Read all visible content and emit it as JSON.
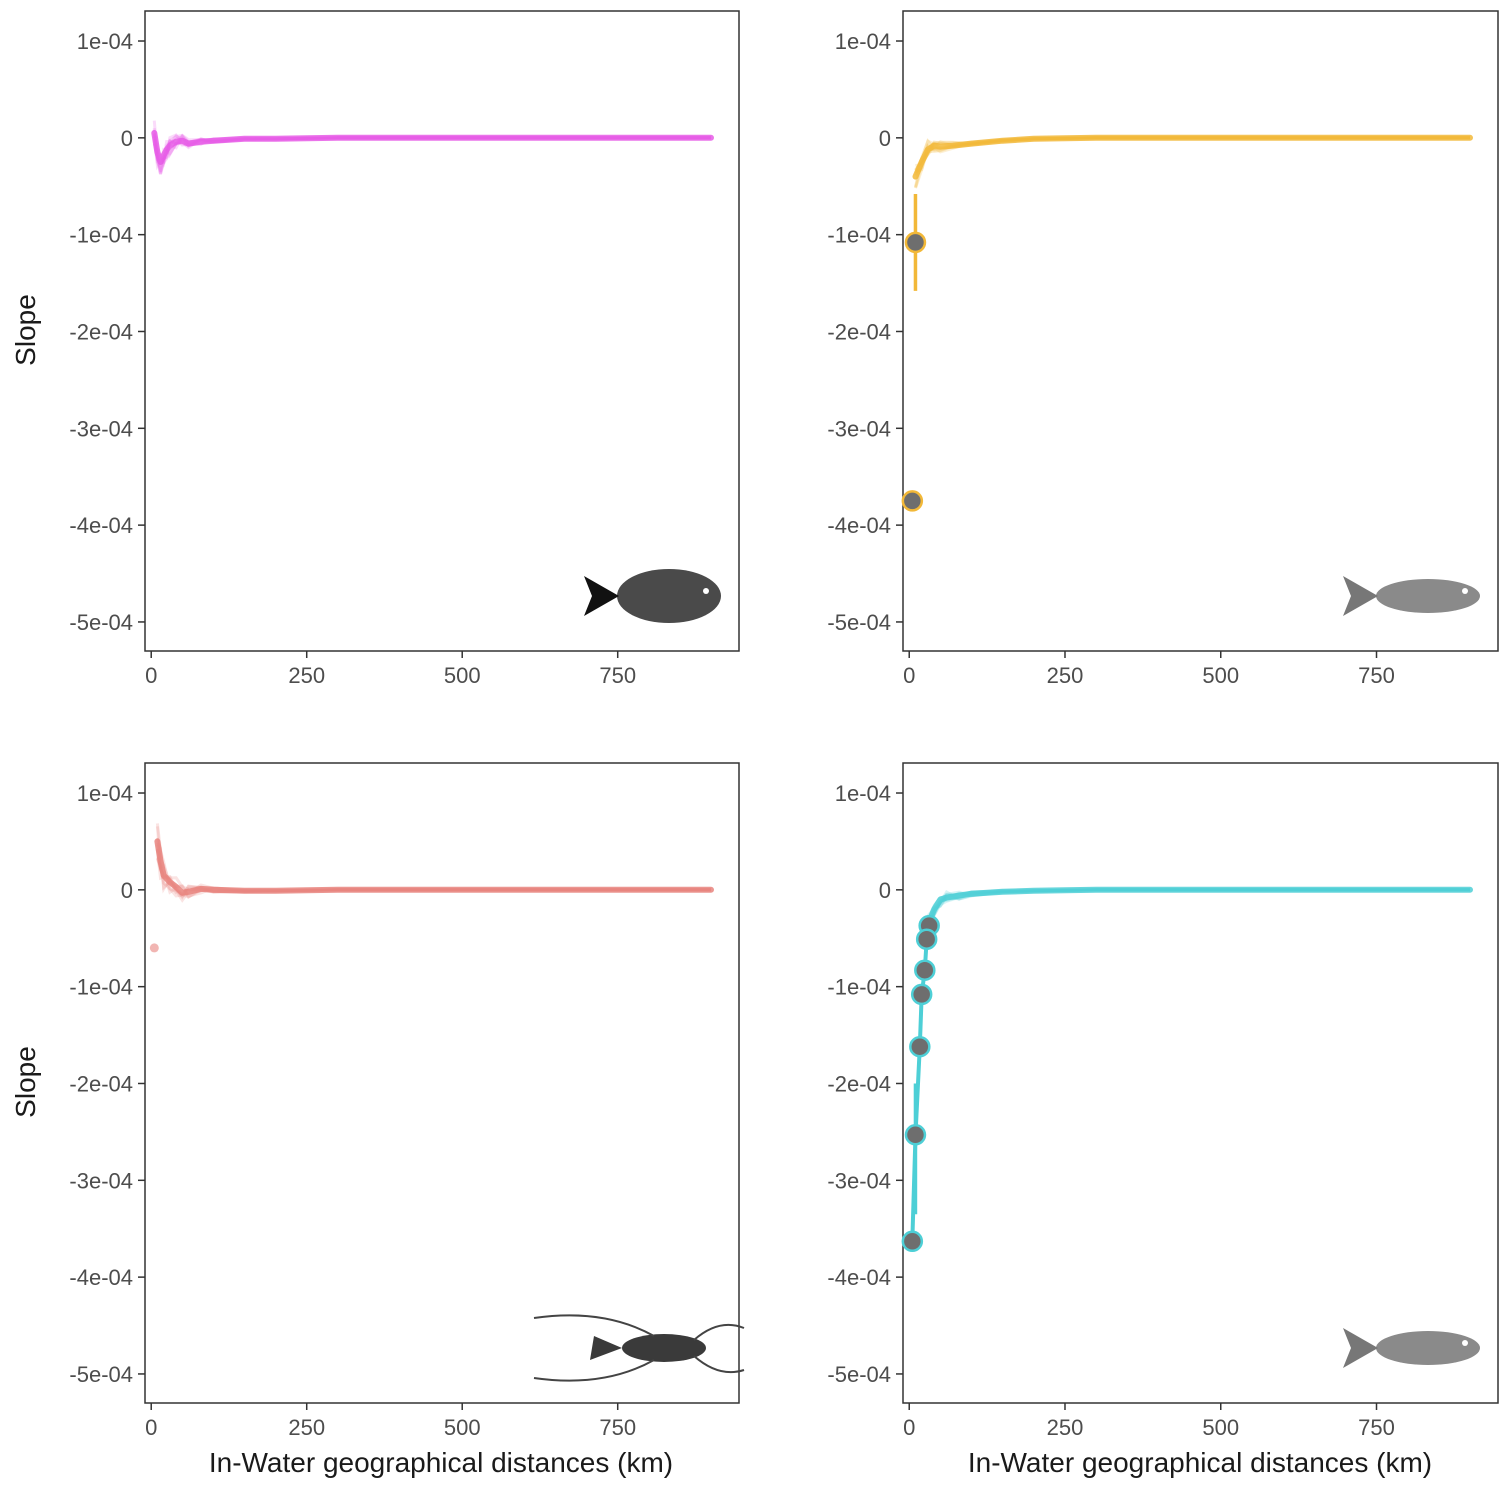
{
  "figure": {
    "y_axis_title": "Slope",
    "x_axis_title": "In-Water geographical distances (km)"
  },
  "colors": {
    "panel1": "#e65ce6",
    "panel2": "#f2b838",
    "panel3": "#e8847e",
    "panel4": "#4dcfd6",
    "point_fill": "#6e6e6e",
    "axis": "#333333",
    "tick_text": "#4d4d4d"
  },
  "icons": [
    "fish-silhouette-icon",
    "fish-silhouette-icon",
    "crayfish-silhouette-icon",
    "fish-silhouette-icon"
  ],
  "chart_data": [
    {
      "type": "line",
      "panel": "top-left",
      "ylabel": "Slope",
      "xlabel": "",
      "xlim": [
        -10,
        945
      ],
      "ylim": [
        -0.00053,
        0.000131
      ],
      "x_ticks": [
        0,
        250,
        500,
        750
      ],
      "x_tick_labels": [
        "0",
        "250",
        "500",
        "750"
      ],
      "y_ticks": [
        0.0001,
        0,
        -0.0001,
        -0.0002,
        -0.0003,
        -0.0004,
        -0.0005
      ],
      "y_tick_labels": [
        "1e-04",
        "0",
        "-1e-04",
        "-2e-04",
        "-3e-04",
        "-4e-04",
        "-5e-04"
      ],
      "series": [
        {
          "color": "#e65ce6",
          "x": [
            5,
            10,
            15,
            20,
            25,
            30,
            40,
            50,
            60,
            80,
            100,
            150,
            200,
            300,
            500,
            700,
            900
          ],
          "y": [
            5e-06,
            -1.5e-05,
            -2.5e-05,
            -1.8e-05,
            -1.2e-05,
            -8e-06,
            -4e-06,
            -3e-06,
            -6e-06,
            -4e-06,
            -3e-06,
            -1e-06,
            -1e-06,
            0,
            0,
            0,
            0
          ]
        }
      ],
      "highlight_points": []
    },
    {
      "type": "line",
      "panel": "top-right",
      "ylabel": "",
      "xlabel": "",
      "xlim": [
        -10,
        945
      ],
      "ylim": [
        -0.00053,
        0.000131
      ],
      "x_ticks": [
        0,
        250,
        500,
        750
      ],
      "x_tick_labels": [
        "0",
        "250",
        "500",
        "750"
      ],
      "y_ticks": [
        0.0001,
        0,
        -0.0001,
        -0.0002,
        -0.0003,
        -0.0004,
        -0.0005
      ],
      "y_tick_labels": [
        "1e-04",
        "0",
        "-1e-04",
        "-2e-04",
        "-3e-04",
        "-4e-04",
        "-5e-04"
      ],
      "series": [
        {
          "color": "#f2b838",
          "x": [
            10,
            20,
            30,
            40,
            50,
            70,
            100,
            150,
            200,
            300,
            500,
            700,
            900
          ],
          "y": [
            -4e-05,
            -2.5e-05,
            -1.2e-05,
            -8e-06,
            -9e-06,
            -8e-06,
            -6e-06,
            -3e-06,
            -1e-06,
            0,
            0,
            0,
            0
          ]
        }
      ],
      "highlight_points": [
        {
          "x": 10,
          "y": -0.000108,
          "err_low": -0.000158,
          "err_high": -5.8e-05
        },
        {
          "x": 5,
          "y": -0.000375
        }
      ]
    },
    {
      "type": "line",
      "panel": "bottom-left",
      "ylabel": "Slope",
      "xlabel": "In-Water geographical distances (km)",
      "xlim": [
        -10,
        945
      ],
      "ylim": [
        -0.00053,
        0.000131
      ],
      "x_ticks": [
        0,
        250,
        500,
        750
      ],
      "x_tick_labels": [
        "0",
        "250",
        "500",
        "750"
      ],
      "y_ticks": [
        0.0001,
        0,
        -0.0001,
        -0.0002,
        -0.0003,
        -0.0004,
        -0.0005
      ],
      "y_tick_labels": [
        "1e-04",
        "0",
        "-1e-04",
        "-2e-04",
        "-3e-04",
        "-4e-04",
        "-5e-04"
      ],
      "series": [
        {
          "color": "#e8847e",
          "x": [
            10,
            15,
            20,
            30,
            40,
            50,
            60,
            80,
            100,
            150,
            200,
            300,
            500,
            700,
            900
          ],
          "y": [
            5e-05,
            3e-05,
            1.5e-05,
            8e-06,
            3e-06,
            -3e-06,
            -2e-06,
            1e-06,
            0,
            -1e-06,
            -1e-06,
            0,
            0,
            0,
            0
          ]
        }
      ],
      "highlight_points": [
        {
          "x": 5,
          "y": -6e-05
        }
      ]
    },
    {
      "type": "line",
      "panel": "bottom-right",
      "ylabel": "",
      "xlabel": "In-Water geographical distances (km)",
      "xlim": [
        -10,
        945
      ],
      "ylim": [
        -0.00053,
        0.000131
      ],
      "x_ticks": [
        0,
        250,
        500,
        750
      ],
      "x_tick_labels": [
        "0",
        "250",
        "500",
        "750"
      ],
      "y_ticks": [
        0.0001,
        0,
        -0.0001,
        -0.0002,
        -0.0003,
        -0.0004,
        -0.0005
      ],
      "y_tick_labels": [
        "1e-04",
        "0",
        "-1e-04",
        "-2e-04",
        "-3e-04",
        "-4e-04",
        "-5e-04"
      ],
      "series": [
        {
          "color": "#4dcfd6",
          "x": [
            30,
            40,
            50,
            60,
            80,
            100,
            150,
            200,
            300,
            500,
            700,
            900
          ],
          "y": [
            -3.6e-05,
            -2e-05,
            -1e-05,
            -8e-06,
            -6e-06,
            -4e-06,
            -2e-06,
            -1e-06,
            0,
            0,
            0,
            0
          ]
        }
      ],
      "highlight_points": [
        {
          "x": 32,
          "y": -3.7e-05
        },
        {
          "x": 28,
          "y": -5.1e-05
        },
        {
          "x": 25,
          "y": -8.3e-05
        },
        {
          "x": 20,
          "y": -0.000108
        },
        {
          "x": 17,
          "y": -0.000162
        },
        {
          "x": 10,
          "y": -0.000253,
          "err_low": -0.000335,
          "err_high": -0.0002
        },
        {
          "x": 5,
          "y": -0.000363
        }
      ]
    }
  ]
}
